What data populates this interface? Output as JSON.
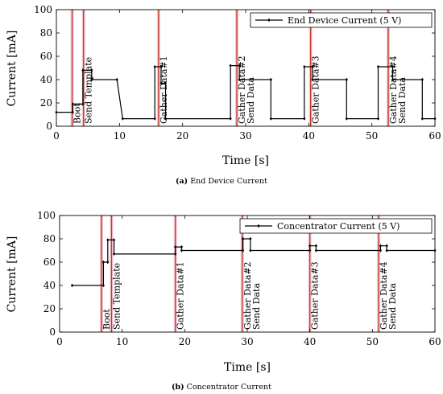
{
  "chart_data": [
    {
      "type": "line",
      "id": "a",
      "xlabel": "Time [s]",
      "ylabel": "Current [mA]",
      "xlim": [
        0,
        60
      ],
      "ylim": [
        0,
        100
      ],
      "xticks": [
        0,
        10,
        20,
        30,
        40,
        50,
        60
      ],
      "yticks": [
        0,
        20,
        40,
        60,
        80,
        100
      ],
      "legend": "top-right",
      "series": [
        {
          "name": "End Device Current (5 V)",
          "color": "#000000",
          "marker": "diamond",
          "points": [
            [
              0,
              12
            ],
            [
              2.6,
              12
            ],
            [
              2.6,
              19
            ],
            [
              4.2,
              19
            ],
            [
              4.2,
              48
            ],
            [
              5.6,
              48
            ],
            [
              5.6,
              40
            ],
            [
              9.6,
              40
            ],
            [
              10.5,
              6.5
            ],
            [
              15.6,
              6.5
            ],
            [
              15.6,
              51
            ],
            [
              16.6,
              51
            ],
            [
              16.6,
              37
            ],
            [
              17.3,
              37
            ],
            [
              17.3,
              6.5
            ],
            [
              27.6,
              6.5
            ],
            [
              27.6,
              52
            ],
            [
              29,
              52
            ],
            [
              29,
              40
            ],
            [
              34,
              40
            ],
            [
              34,
              6.5
            ],
            [
              39.3,
              6.5
            ],
            [
              39.3,
              51
            ],
            [
              40.6,
              51
            ],
            [
              40.6,
              40
            ],
            [
              46,
              40
            ],
            [
              46,
              6.5
            ],
            [
              51,
              6.5
            ],
            [
              51,
              51
            ],
            [
              53.3,
              51
            ],
            [
              53.3,
              40
            ],
            [
              58,
              40
            ],
            [
              58,
              6.5
            ],
            [
              60,
              6.5
            ]
          ]
        }
      ],
      "events": [
        {
          "x": 2.5,
          "label": "Boot"
        },
        {
          "x": 4.3,
          "label": "Send Template"
        },
        {
          "x": 16.2,
          "label": "Gather Data#1"
        },
        {
          "x": 28.6,
          "label": "Gather Data#2 Send Data"
        },
        {
          "x": 40.3,
          "label": "Gather Data#3"
        },
        {
          "x": 52.6,
          "label": "Gather Data#4 Send Data"
        }
      ],
      "event_color": "#c0392b"
    },
    {
      "type": "line",
      "id": "b",
      "xlabel": "Time [s]",
      "ylabel": "Current [mA]",
      "xlim": [
        0,
        60
      ],
      "ylim": [
        0,
        100
      ],
      "xticks": [
        0,
        10,
        20,
        30,
        40,
        50,
        60
      ],
      "yticks": [
        0,
        20,
        40,
        60,
        80,
        100
      ],
      "legend": "top-right",
      "series": [
        {
          "name": "Concentrator Current (5 V)",
          "color": "#000000",
          "marker": "diamond",
          "points": [
            [
              2,
              40
            ],
            [
              7,
              40
            ],
            [
              7,
              60
            ],
            [
              7.7,
              60
            ],
            [
              7.7,
              79
            ],
            [
              8.7,
              79
            ],
            [
              8.7,
              67
            ],
            [
              18.5,
              67
            ],
            [
              18.5,
              73
            ],
            [
              19.5,
              73
            ],
            [
              19.5,
              70
            ],
            [
              29.3,
              70
            ],
            [
              29.3,
              80
            ],
            [
              30.5,
              80
            ],
            [
              30.5,
              70
            ],
            [
              40,
              70
            ],
            [
              40,
              74
            ],
            [
              41,
              74
            ],
            [
              41,
              70
            ],
            [
              51.3,
              70
            ],
            [
              51.3,
              74
            ],
            [
              52.3,
              74
            ],
            [
              52.3,
              70
            ],
            [
              60,
              70
            ]
          ]
        }
      ],
      "events": [
        {
          "x": 6.7,
          "label": "Boot"
        },
        {
          "x": 8.3,
          "label": "Send Template"
        },
        {
          "x": 18.5,
          "label": "Gather Data#1"
        },
        {
          "x": 29.2,
          "label": "Gather Data#2 Send Data"
        },
        {
          "x": 40.0,
          "label": "Gather Data#3"
        },
        {
          "x": 51.0,
          "label": "Gather Data#4 Send Data"
        }
      ],
      "event_color": "#c0392b"
    }
  ],
  "captions": {
    "a_label": "(a)",
    "a_text": "End Device Current",
    "b_label": "(b)",
    "b_text": "Concentrator Current"
  }
}
